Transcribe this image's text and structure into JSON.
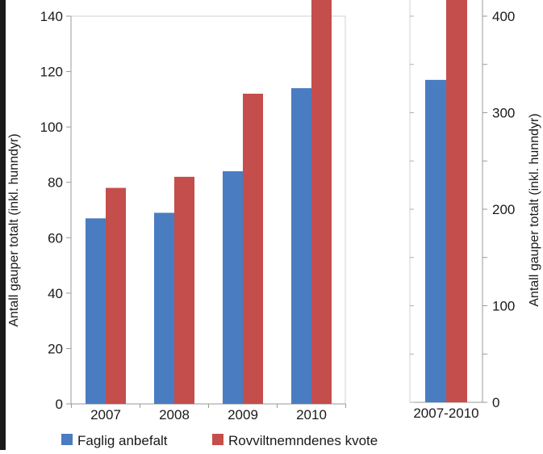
{
  "chart_data": [
    {
      "type": "bar",
      "categories": [
        "2007",
        "2008",
        "2009",
        "2010"
      ],
      "series": [
        {
          "name": "Faglig anbefalt",
          "values": [
            67,
            69,
            84,
            114
          ],
          "color": "#4a7cc2"
        },
        {
          "name": "Rovviltnemndenes kvote",
          "values": [
            78,
            82,
            112,
            149
          ],
          "color": "#c44e4b"
        }
      ],
      "ylabel": "Antall gauper totalt (inkl. hunndyr)",
      "ylim": [
        0,
        140
      ],
      "yticks": [
        0,
        20,
        40,
        60,
        80,
        100,
        120,
        140
      ],
      "grid": false
    },
    {
      "type": "bar",
      "categories": [
        "2007-2010"
      ],
      "series": [
        {
          "name": "Faglig anbefalt",
          "values": [
            334
          ],
          "color": "#4a7cc2"
        },
        {
          "name": "Rovviltnemndenes kvote",
          "values": [
            421
          ],
          "color": "#c44e4b"
        }
      ],
      "ylabel": "Antall gauper totalt (inkl. hunndyr)",
      "ylim": [
        0,
        400
      ],
      "yticks": [
        0,
        100,
        200,
        300,
        400
      ],
      "grid": false
    }
  ],
  "legend": {
    "position": "bottom-left",
    "items": [
      {
        "label": "Faglig anbefalt",
        "color": "#4a7cc2"
      },
      {
        "label": "Rovviltnemndenes kvote",
        "color": "#c44e4b"
      }
    ]
  }
}
